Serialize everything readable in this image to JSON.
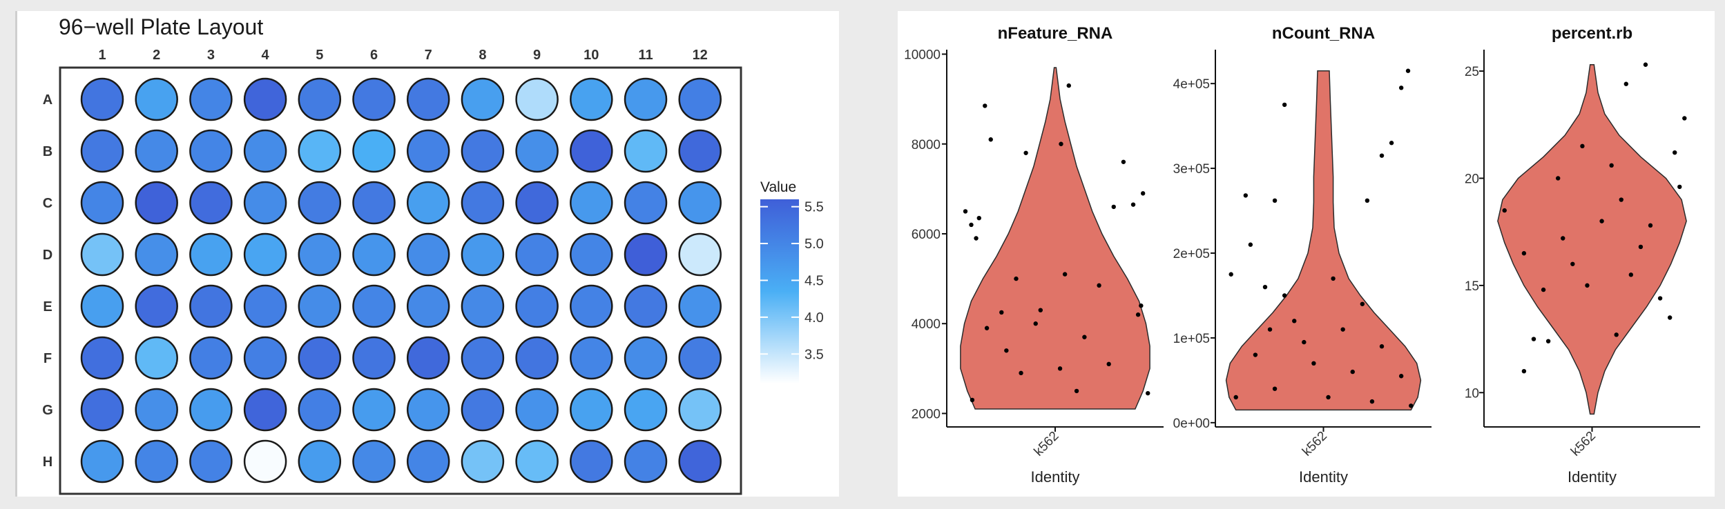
{
  "plate": {
    "title": "96−well Plate Layout",
    "columns": [
      "1",
      "2",
      "3",
      "4",
      "5",
      "6",
      "7",
      "8",
      "9",
      "10",
      "11",
      "12"
    ],
    "rows": [
      "A",
      "B",
      "C",
      "D",
      "E",
      "F",
      "G",
      "H"
    ],
    "legend": {
      "title": "Value",
      "ticks": [
        5.5,
        5.0,
        4.5,
        4.0,
        3.5
      ],
      "tick_labels": [
        "5.5",
        "5.0",
        "4.5",
        "4.0",
        "3.5"
      ],
      "range": [
        3.1,
        5.6
      ]
    },
    "colors": {
      "high": "#3f5fd8",
      "mid": "#4aaff5",
      "low": "#ffffff"
    }
  },
  "chart_data": [
    {
      "type": "heatmap",
      "title": "96−well Plate Layout",
      "x": [
        "1",
        "2",
        "3",
        "4",
        "5",
        "6",
        "7",
        "8",
        "9",
        "10",
        "11",
        "12"
      ],
      "y": [
        "A",
        "B",
        "C",
        "D",
        "E",
        "F",
        "G",
        "H"
      ],
      "legend_title": "Value",
      "color_range": [
        3.1,
        5.6
      ],
      "values": [
        [
          5.25,
          4.55,
          5.0,
          5.5,
          5.15,
          5.2,
          5.2,
          4.6,
          3.65,
          4.55,
          4.7,
          5.1
        ],
        [
          5.2,
          4.95,
          5.0,
          4.9,
          4.25,
          4.35,
          5.05,
          5.2,
          4.85,
          5.55,
          4.2,
          5.45
        ],
        [
          5.0,
          5.55,
          5.4,
          4.9,
          5.15,
          5.2,
          4.6,
          5.2,
          5.45,
          4.7,
          5.05,
          4.75
        ],
        [
          4.05,
          4.85,
          4.55,
          4.5,
          4.85,
          4.75,
          4.9,
          4.7,
          5.05,
          5.0,
          5.6,
          3.45
        ],
        [
          4.6,
          5.4,
          5.25,
          5.1,
          4.9,
          5.0,
          4.95,
          4.95,
          5.1,
          5.05,
          5.2,
          4.8
        ],
        [
          5.35,
          4.2,
          5.1,
          5.1,
          5.35,
          5.25,
          5.45,
          5.2,
          5.25,
          5.0,
          4.9,
          5.15
        ],
        [
          5.35,
          4.85,
          4.65,
          5.5,
          5.1,
          4.65,
          4.75,
          5.2,
          4.8,
          4.55,
          4.5,
          4.05
        ],
        [
          4.7,
          5.0,
          5.05,
          3.15,
          4.65,
          4.95,
          5.0,
          4.05,
          4.15,
          5.2,
          5.05,
          5.5
        ]
      ]
    },
    {
      "type": "violin",
      "title": "nFeature_RNA",
      "category": "k562",
      "xlabel": "Identity",
      "ylabel": "",
      "ylim": [
        1700,
        10100
      ],
      "yticks": [
        2000,
        4000,
        6000,
        8000,
        10000
      ],
      "ytick_labels": [
        "2000",
        "4000",
        "6000",
        "8000",
        "10000"
      ],
      "fill": "#e07468",
      "range": [
        2100,
        9700
      ],
      "density": [
        [
          2100,
          0.82
        ],
        [
          2500,
          0.9
        ],
        [
          3000,
          0.97
        ],
        [
          3500,
          0.97
        ],
        [
          4000,
          0.93
        ],
        [
          4500,
          0.86
        ],
        [
          5000,
          0.74
        ],
        [
          5500,
          0.6
        ],
        [
          6000,
          0.48
        ],
        [
          6500,
          0.38
        ],
        [
          7000,
          0.3
        ],
        [
          7500,
          0.22
        ],
        [
          8000,
          0.16
        ],
        [
          8500,
          0.1
        ],
        [
          9000,
          0.05
        ],
        [
          9700,
          0.01
        ]
      ],
      "points": [
        [
          -0.72,
          8850
        ],
        [
          -0.66,
          8100
        ],
        [
          -0.3,
          7800
        ],
        [
          0.06,
          8000
        ],
        [
          0.14,
          9300
        ],
        [
          -0.92,
          6500
        ],
        [
          -0.86,
          6200
        ],
        [
          -0.81,
          5900
        ],
        [
          -0.78,
          6350
        ],
        [
          0.6,
          6600
        ],
        [
          0.8,
          6650
        ],
        [
          -0.55,
          4250
        ],
        [
          0.45,
          4850
        ],
        [
          -0.2,
          4000
        ],
        [
          0.3,
          3700
        ],
        [
          -0.5,
          3400
        ],
        [
          0.05,
          3000
        ],
        [
          -0.35,
          2900
        ],
        [
          0.22,
          2500
        ],
        [
          -0.85,
          2300
        ],
        [
          0.95,
          2450
        ],
        [
          0.7,
          7600
        ],
        [
          0.9,
          6900
        ],
        [
          0.88,
          4400
        ],
        [
          0.85,
          4200
        ],
        [
          -0.4,
          5000
        ],
        [
          0.1,
          5100
        ],
        [
          -0.7,
          3900
        ],
        [
          0.55,
          3100
        ],
        [
          -0.15,
          4300
        ]
      ]
    },
    {
      "type": "violin",
      "title": "nCount_RNA",
      "category": "k562",
      "xlabel": "Identity",
      "ylabel": "",
      "ylim": [
        -5000,
        440000
      ],
      "yticks": [
        0,
        100000,
        200000,
        300000,
        400000
      ],
      "ytick_labels": [
        "0e+00",
        "1e+05",
        "2e+05",
        "3e+05",
        "4e+05"
      ],
      "fill": "#e07468",
      "range": [
        15000,
        415000
      ],
      "density": [
        [
          15000,
          0.9
        ],
        [
          30000,
          0.97
        ],
        [
          50000,
          1.0
        ],
        [
          70000,
          0.96
        ],
        [
          90000,
          0.84
        ],
        [
          110000,
          0.68
        ],
        [
          130000,
          0.52
        ],
        [
          150000,
          0.38
        ],
        [
          170000,
          0.26
        ],
        [
          200000,
          0.16
        ],
        [
          230000,
          0.11
        ],
        [
          260000,
          0.1
        ],
        [
          290000,
          0.1
        ],
        [
          320000,
          0.09
        ],
        [
          350000,
          0.08
        ],
        [
          380000,
          0.07
        ],
        [
          415000,
          0.06
        ]
      ],
      "points": [
        [
          -0.4,
          375000
        ],
        [
          0.8,
          395000
        ],
        [
          0.87,
          415000
        ],
        [
          0.7,
          330000
        ],
        [
          0.6,
          315000
        ],
        [
          -0.8,
          268000
        ],
        [
          -0.5,
          262000
        ],
        [
          0.45,
          262000
        ],
        [
          -0.75,
          210000
        ],
        [
          -0.95,
          175000
        ],
        [
          -0.6,
          160000
        ],
        [
          -0.4,
          150000
        ],
        [
          0.1,
          170000
        ],
        [
          -0.3,
          120000
        ],
        [
          0.2,
          110000
        ],
        [
          -0.7,
          80000
        ],
        [
          -0.1,
          70000
        ],
        [
          0.3,
          60000
        ],
        [
          0.6,
          90000
        ],
        [
          -0.5,
          40000
        ],
        [
          0.05,
          30000
        ],
        [
          0.5,
          25000
        ],
        [
          0.9,
          20000
        ],
        [
          -0.9,
          30000
        ],
        [
          0.8,
          55000
        ],
        [
          -0.2,
          95000
        ],
        [
          0.4,
          140000
        ],
        [
          -0.55,
          110000
        ]
      ]
    },
    {
      "type": "violin",
      "title": "percent.rb",
      "category": "k562",
      "xlabel": "Identity",
      "ylabel": "",
      "ylim": [
        8.4,
        26.0
      ],
      "yticks": [
        10,
        15,
        20,
        25
      ],
      "ytick_labels": [
        "10",
        "15",
        "20",
        "25"
      ],
      "fill": "#e07468",
      "range": [
        9.0,
        25.3
      ],
      "density": [
        [
          9.0,
          0.02
        ],
        [
          10.0,
          0.06
        ],
        [
          11.0,
          0.13
        ],
        [
          12.0,
          0.24
        ],
        [
          13.0,
          0.4
        ],
        [
          14.0,
          0.56
        ],
        [
          15.0,
          0.7
        ],
        [
          16.0,
          0.81
        ],
        [
          17.0,
          0.9
        ],
        [
          18.0,
          0.97
        ],
        [
          19.0,
          0.92
        ],
        [
          20.0,
          0.76
        ],
        [
          21.0,
          0.5
        ],
        [
          22.0,
          0.28
        ],
        [
          23.0,
          0.13
        ],
        [
          24.0,
          0.06
        ],
        [
          25.3,
          0.02
        ]
      ],
      "points": [
        [
          -0.7,
          11.0
        ],
        [
          0.55,
          25.3
        ],
        [
          0.35,
          24.4
        ],
        [
          0.95,
          22.8
        ],
        [
          -0.6,
          12.5
        ],
        [
          -0.45,
          12.4
        ],
        [
          0.25,
          12.7
        ],
        [
          0.8,
          13.5
        ],
        [
          -0.9,
          18.5
        ],
        [
          0.9,
          19.6
        ],
        [
          -0.3,
          17.2
        ],
        [
          0.1,
          18.0
        ],
        [
          -0.2,
          16.0
        ],
        [
          0.4,
          15.5
        ],
        [
          0.7,
          14.4
        ],
        [
          -0.5,
          14.8
        ],
        [
          0.2,
          20.6
        ],
        [
          -0.1,
          21.5
        ],
        [
          0.6,
          17.8
        ],
        [
          -0.7,
          16.5
        ],
        [
          0.3,
          19.0
        ],
        [
          -0.35,
          20.0
        ],
        [
          0.5,
          16.8
        ],
        [
          -0.05,
          15.0
        ],
        [
          0.85,
          21.2
        ]
      ]
    }
  ]
}
